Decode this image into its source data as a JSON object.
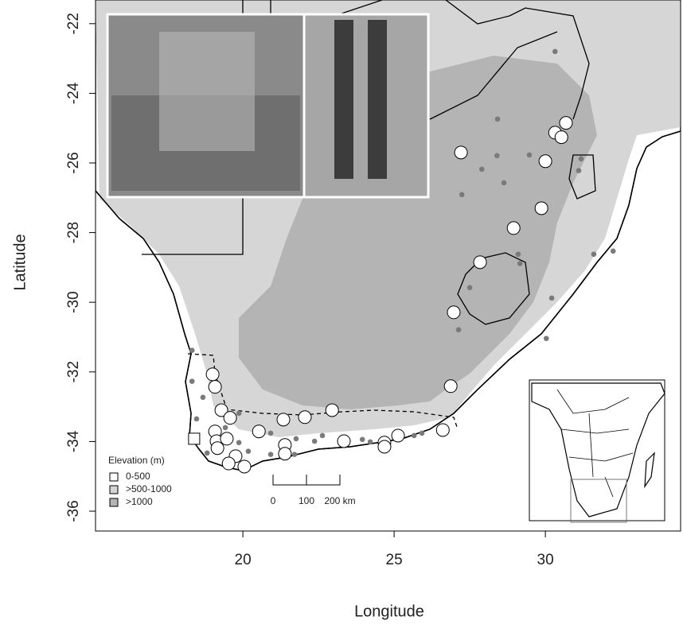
{
  "chart_data": {
    "type": "map",
    "x_label": "Longitude",
    "y_label": "Latitude",
    "xlim": [
      15.13,
      34.47
    ],
    "ylim": [
      -36.57,
      -21.32
    ],
    "xticks": [
      20,
      25,
      30
    ],
    "yticks": [
      -22,
      -24,
      -26,
      -28,
      -30,
      -32,
      -34,
      -36
    ],
    "series": [
      {
        "marker": "circle",
        "color": "#ffffff",
        "x": [
          27.21,
          30.32,
          30.53,
          30.68,
          30.0,
          29.87,
          28.95,
          27.84,
          26.97,
          26.87,
          19.0,
          19.08,
          19.29,
          19.58,
          21.34,
          22.05,
          22.95,
          20.53,
          19.08,
          19.13,
          19.47,
          19.16,
          19.76,
          19.53,
          20.05,
          21.39,
          21.39,
          23.34,
          24.68,
          24.68,
          25.13,
          26.61
        ],
        "y": [
          -25.7,
          -25.13,
          -25.26,
          -24.85,
          -25.95,
          -27.3,
          -27.87,
          -28.85,
          -30.29,
          -32.41,
          -32.07,
          -32.43,
          -33.1,
          -33.32,
          -33.37,
          -33.3,
          -33.1,
          -33.71,
          -33.71,
          -33.99,
          -33.92,
          -34.19,
          -34.42,
          -34.63,
          -34.72,
          -34.1,
          -34.35,
          -33.99,
          -34.03,
          -34.15,
          -33.83,
          -33.67
        ]
      },
      {
        "marker": "dot",
        "color": "#7a7a7a",
        "x": [
          30.32,
          28.42,
          29.47,
          28.4,
          27.9,
          28.63,
          27.24,
          31.18,
          31.1,
          29.1,
          29.16,
          32.24,
          31.6,
          27.5,
          27.13,
          30.21,
          30.03,
          18.32,
          18.32,
          18.68,
          18.47,
          19.42,
          19.87,
          20.92,
          21.76,
          22.63,
          23.95,
          24.21,
          25.66,
          25.92,
          22.37,
          20.92,
          21.71,
          18.82,
          19.42,
          19.87,
          20.18
        ],
        "y": [
          -22.8,
          -24.74,
          -25.77,
          -25.79,
          -26.18,
          -26.57,
          -26.91,
          -25.88,
          -26.22,
          -28.62,
          -28.89,
          -28.53,
          -28.62,
          -29.58,
          -30.79,
          -29.88,
          -31.04,
          -31.38,
          -32.27,
          -32.73,
          -33.35,
          -33.6,
          -33.19,
          -33.76,
          -33.92,
          -33.83,
          -33.94,
          -34.01,
          -33.83,
          -33.76,
          -33.99,
          -34.37,
          -34.37,
          -34.33,
          -34.6,
          -34.03,
          -34.28
        ]
      },
      {
        "marker": "square",
        "color": "#ffffff",
        "x": [
          18.39
        ],
        "y": [
          -33.92
        ]
      }
    ],
    "legend": {
      "title": "Elevation (m)",
      "corner": "bottom-left",
      "entries": [
        {
          "label": "0-500",
          "color": "#ffffff"
        },
        {
          "label": ">500-1000",
          "color": "#d6d6d6"
        },
        {
          "label": ">1000",
          "color": "#b4b4b4"
        }
      ]
    },
    "scale_bar": {
      "labels": [
        "0",
        "100",
        "200 km"
      ]
    }
  }
}
